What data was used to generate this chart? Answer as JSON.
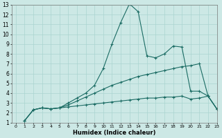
{
  "xlabel": "Humidex (Indice chaleur)",
  "ylabel": "",
  "background_color": "#cce8e5",
  "grid_color": "#aad4d0",
  "line_color": "#1a6b63",
  "xlim": [
    -0.5,
    23
  ],
  "ylim": [
    1,
    13
  ],
  "xticks": [
    0,
    1,
    2,
    3,
    4,
    5,
    6,
    7,
    8,
    9,
    10,
    11,
    12,
    13,
    14,
    15,
    16,
    17,
    18,
    19,
    20,
    21,
    22,
    23
  ],
  "yticks": [
    1,
    2,
    3,
    4,
    5,
    6,
    7,
    8,
    9,
    10,
    11,
    12,
    13
  ],
  "line1_x": [
    1,
    2,
    3,
    4,
    5,
    6,
    7,
    8,
    9,
    10,
    11,
    12,
    13,
    14,
    15,
    16,
    17,
    18,
    19,
    20,
    21,
    22,
    23
  ],
  "line1_y": [
    1.2,
    2.3,
    2.5,
    2.4,
    2.5,
    3.0,
    3.5,
    4.0,
    4.8,
    6.5,
    9.0,
    11.2,
    13.1,
    12.3,
    7.8,
    7.6,
    8.0,
    8.8,
    8.7,
    4.2,
    4.2,
    3.7,
    2.4
  ],
  "line2_x": [
    1,
    2,
    3,
    4,
    5,
    6,
    7,
    8,
    9,
    10,
    11,
    12,
    13,
    14,
    15,
    16,
    17,
    18,
    19,
    20,
    21,
    22,
    23
  ],
  "line2_y": [
    1.2,
    2.3,
    2.5,
    2.4,
    2.5,
    2.8,
    3.2,
    3.6,
    4.0,
    4.4,
    4.8,
    5.1,
    5.4,
    5.7,
    5.9,
    6.1,
    6.3,
    6.5,
    6.7,
    6.8,
    7.0,
    3.7,
    2.4
  ],
  "line3_x": [
    1,
    2,
    3,
    4,
    5,
    6,
    7,
    8,
    9,
    10,
    11,
    12,
    13,
    14,
    15,
    16,
    17,
    18,
    19,
    20,
    21,
    22,
    23
  ],
  "line3_y": [
    1.2,
    2.3,
    2.5,
    2.4,
    2.5,
    2.6,
    2.7,
    2.8,
    2.9,
    3.0,
    3.1,
    3.2,
    3.3,
    3.4,
    3.5,
    3.5,
    3.6,
    3.6,
    3.7,
    3.4,
    3.5,
    3.7,
    2.4
  ]
}
